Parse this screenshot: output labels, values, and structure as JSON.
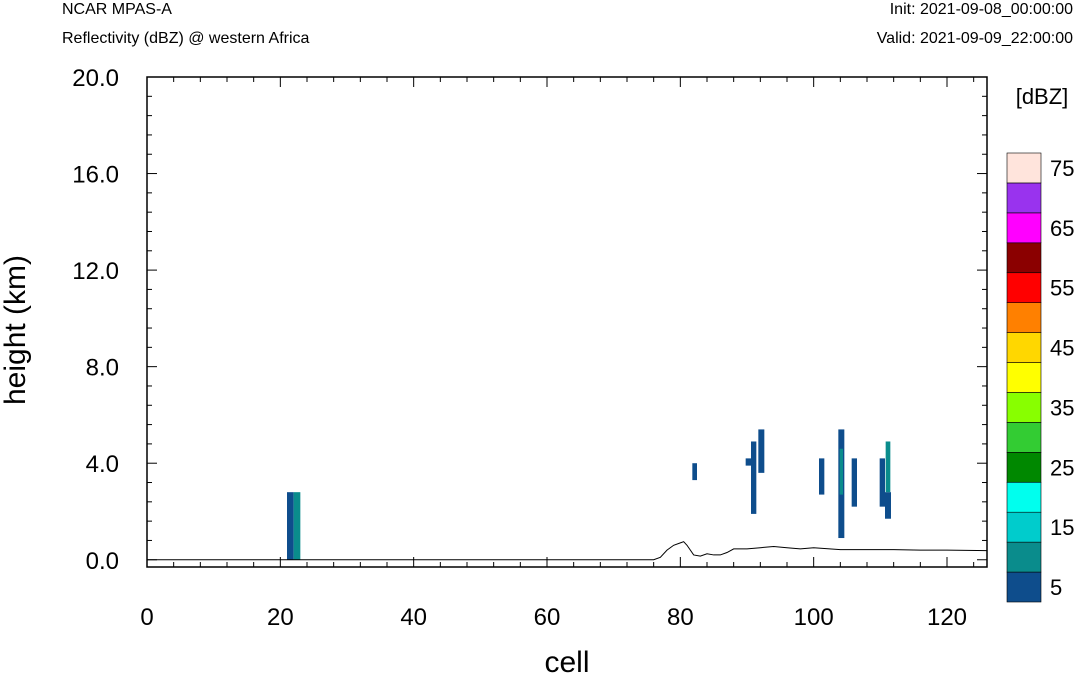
{
  "header": {
    "model": "NCAR MPAS-A",
    "field": "Reflectivity (dBZ) @ western Africa",
    "init": "Init: 2021-09-08_00:00:00",
    "valid": "Valid: 2021-09-09_22:00:00"
  },
  "chart_data": {
    "type": "heatmap",
    "xlabel": "cell",
    "ylabel": "height (km)",
    "xlim": [
      0,
      126
    ],
    "ylim": [
      -0.3,
      20.0
    ],
    "x_ticks": [
      0,
      20,
      40,
      60,
      80,
      100,
      120
    ],
    "x_tick_labels": [
      "0",
      "20",
      "40",
      "60",
      "80",
      "100",
      "120"
    ],
    "y_ticks": [
      0,
      4,
      8,
      12,
      16,
      20
    ],
    "y_tick_labels": [
      "0.0",
      "4.0",
      "8.0",
      "12.0",
      "16.0",
      "20.0"
    ],
    "grid": false,
    "colorbar": {
      "title": "[dBZ]",
      "placement": "right",
      "bins": [
        {
          "from": 0,
          "to": 5,
          "color": "#0e4d8c"
        },
        {
          "from": 5,
          "to": 10,
          "color": "#0a8c8c"
        },
        {
          "from": 10,
          "to": 15,
          "color": "#00cccc"
        },
        {
          "from": 15,
          "to": 20,
          "color": "#00ffee"
        },
        {
          "from": 20,
          "to": 25,
          "color": "#008800"
        },
        {
          "from": 25,
          "to": 30,
          "color": "#33cc33"
        },
        {
          "from": 30,
          "to": 35,
          "color": "#88ff00"
        },
        {
          "from": 35,
          "to": 40,
          "color": "#ffff00"
        },
        {
          "from": 40,
          "to": 45,
          "color": "#ffd700"
        },
        {
          "from": 45,
          "to": 50,
          "color": "#ff8000"
        },
        {
          "from": 50,
          "to": 55,
          "color": "#ff0000"
        },
        {
          "from": 55,
          "to": 60,
          "color": "#8b0000"
        },
        {
          "from": 60,
          "to": 65,
          "color": "#ff00ff"
        },
        {
          "from": 65,
          "to": 70,
          "color": "#9933ee"
        },
        {
          "from": 70,
          "to": 75,
          "color": "#ffe4dc"
        }
      ],
      "labels": [
        "5",
        "15",
        "25",
        "35",
        "45",
        "55",
        "65",
        "75"
      ]
    },
    "cells": [
      {
        "x0": 21,
        "x1": 22,
        "y0": 0.0,
        "y1": 2.8,
        "dbz": "0-5"
      },
      {
        "x0": 22,
        "x1": 23,
        "y0": 0.0,
        "y1": 2.8,
        "dbz": "5-10"
      },
      {
        "x0": 81.8,
        "x1": 82.5,
        "y0": 3.3,
        "y1": 4.0,
        "dbz": "0-5"
      },
      {
        "x0": 89.8,
        "x1": 90.6,
        "y0": 3.9,
        "y1": 4.2,
        "dbz": "0-5"
      },
      {
        "x0": 90.6,
        "x1": 91.4,
        "y0": 1.9,
        "y1": 4.9,
        "dbz": "0-5"
      },
      {
        "x0": 91.7,
        "x1": 92.6,
        "y0": 3.6,
        "y1": 5.4,
        "dbz": "0-5"
      },
      {
        "x0": 100.8,
        "x1": 101.6,
        "y0": 2.7,
        "y1": 4.2,
        "dbz": "0-5"
      },
      {
        "x0": 103.7,
        "x1": 104.6,
        "y0": 0.9,
        "y1": 5.4,
        "dbz": "0-5"
      },
      {
        "x0": 103.9,
        "x1": 104.4,
        "y0": 2.7,
        "y1": 4.6,
        "dbz": "5-10"
      },
      {
        "x0": 105.7,
        "x1": 106.5,
        "y0": 2.2,
        "y1": 4.2,
        "dbz": "0-5"
      },
      {
        "x0": 109.9,
        "x1": 110.7,
        "y0": 2.2,
        "y1": 4.2,
        "dbz": "0-5"
      },
      {
        "x0": 110.7,
        "x1": 111.6,
        "y0": 1.7,
        "y1": 2.8,
        "dbz": "0-5"
      },
      {
        "x0": 110.8,
        "x1": 111.5,
        "y0": 2.8,
        "y1": 4.9,
        "dbz": "5-10"
      }
    ],
    "terrain": {
      "x": [
        0,
        76,
        77,
        78,
        79,
        80,
        80.5,
        81,
        82,
        83,
        84,
        85,
        86,
        87,
        88,
        90,
        92,
        94,
        96,
        98,
        100,
        104,
        108,
        112,
        116,
        120,
        126
      ],
      "y": [
        0,
        0,
        0.1,
        0.4,
        0.6,
        0.7,
        0.75,
        0.6,
        0.2,
        0.15,
        0.25,
        0.2,
        0.2,
        0.3,
        0.45,
        0.45,
        0.5,
        0.55,
        0.5,
        0.45,
        0.5,
        0.42,
        0.42,
        0.42,
        0.4,
        0.4,
        0.38
      ]
    }
  }
}
